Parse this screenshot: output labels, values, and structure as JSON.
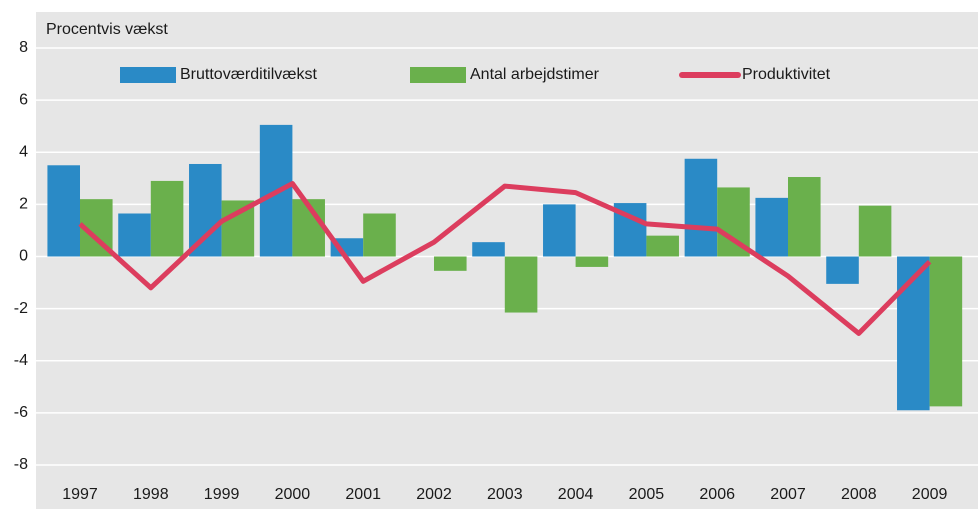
{
  "chart_data": {
    "type": "bar-line",
    "title": "Procentvis vækst",
    "categories": [
      "1997",
      "1998",
      "1999",
      "2000",
      "2001",
      "2002",
      "2003",
      "2004",
      "2005",
      "2006",
      "2007",
      "2008",
      "2009"
    ],
    "series": [
      {
        "name": "Bruttoværditilvækst",
        "type": "bar",
        "color": "#2a8ac6",
        "values": [
          3.5,
          1.65,
          3.55,
          5.05,
          0.7,
          0,
          0.55,
          2.0,
          2.05,
          3.75,
          2.25,
          -1.05,
          -5.9
        ]
      },
      {
        "name": "Antal arbejdstimer",
        "type": "bar",
        "color": "#6ab04c",
        "values": [
          2.2,
          2.9,
          2.15,
          2.2,
          1.65,
          -0.55,
          -2.15,
          -0.4,
          0.8,
          2.65,
          3.05,
          1.95,
          -5.75
        ]
      },
      {
        "name": "Produktivitet",
        "type": "line",
        "color": "#dc3d5e",
        "values": [
          1.25,
          -1.2,
          1.35,
          2.8,
          -0.95,
          0.55,
          2.7,
          2.45,
          1.25,
          1.05,
          -0.75,
          -2.95,
          -0.2
        ]
      }
    ],
    "ylim": [
      -8,
      8
    ],
    "yticks": [
      -8,
      -6,
      -4,
      -2,
      0,
      2,
      4,
      6,
      8
    ],
    "grid": true
  }
}
